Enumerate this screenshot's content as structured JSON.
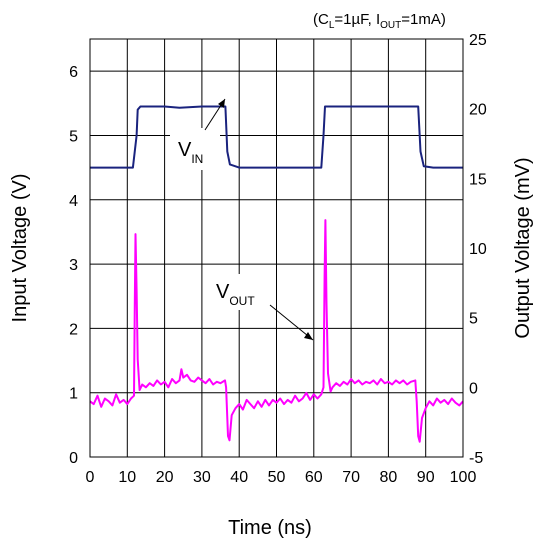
{
  "chart_data": {
    "type": "line",
    "condition": {
      "open": "(C",
      "cl_sub": "L",
      "cl_val": "=1µF, I",
      "iout_sub": "OUT",
      "iout_val": "=1mA)"
    },
    "xlabel": "Time (ns)",
    "ylabel_left": "Input Voltage (V)",
    "ylabel_right": "Output Voltage (mV)",
    "xlim": [
      0,
      100
    ],
    "ylim_left": [
      0,
      6.5
    ],
    "ylim_right": [
      -5,
      25
    ],
    "x_ticks": [
      "0",
      "10",
      "20",
      "30",
      "40",
      "50",
      "60",
      "70",
      "80",
      "90",
      "100"
    ],
    "y_left_ticks": [
      "0",
      "1",
      "2",
      "3",
      "4",
      "5",
      "6"
    ],
    "y_right_ticks": [
      "-5",
      "0",
      "5",
      "10",
      "15",
      "20",
      "25"
    ],
    "grid": true,
    "annotations": {
      "vin": {
        "main": "V",
        "sub": "IN"
      },
      "vout": {
        "main": "V",
        "sub": "OUT"
      }
    },
    "series": [
      {
        "name": "V_IN",
        "axis": "left",
        "color": "#1a237e",
        "points": [
          [
            0,
            4.5
          ],
          [
            5,
            4.5
          ],
          [
            10,
            4.5
          ],
          [
            11.5,
            4.5
          ],
          [
            12.5,
            5.0
          ],
          [
            12.8,
            5.4
          ],
          [
            13.5,
            5.45
          ],
          [
            20,
            5.45
          ],
          [
            24,
            5.43
          ],
          [
            30,
            5.45
          ],
          [
            35,
            5.45
          ],
          [
            36.3,
            5.45
          ],
          [
            36.8,
            4.75
          ],
          [
            37.5,
            4.55
          ],
          [
            40,
            4.5
          ],
          [
            50,
            4.5
          ],
          [
            62,
            4.5
          ],
          [
            62.6,
            5.0
          ],
          [
            63,
            5.45
          ],
          [
            70,
            5.45
          ],
          [
            80,
            5.45
          ],
          [
            88,
            5.45
          ],
          [
            88.6,
            4.75
          ],
          [
            89.5,
            4.52
          ],
          [
            92,
            4.5
          ],
          [
            100,
            4.5
          ]
        ]
      },
      {
        "name": "V_OUT",
        "axis": "right",
        "color": "#ff00ff",
        "points": [
          [
            0,
            -1.0
          ],
          [
            1,
            -1.2
          ],
          [
            2,
            -0.6
          ],
          [
            3,
            -1.4
          ],
          [
            4,
            -0.8
          ],
          [
            5,
            -1.0
          ],
          [
            6,
            -1.3
          ],
          [
            7,
            -0.5
          ],
          [
            8,
            -1.1
          ],
          [
            9,
            -0.9
          ],
          [
            10,
            -1.2
          ],
          [
            11,
            -0.8
          ],
          [
            11.8,
            -0.6
          ],
          [
            12.0,
            6.0
          ],
          [
            12.2,
            11.0
          ],
          [
            12.5,
            7.0
          ],
          [
            12.8,
            2.0
          ],
          [
            13.3,
            -0.2
          ],
          [
            14,
            0.2
          ],
          [
            15,
            0
          ],
          [
            16,
            0.3
          ],
          [
            17,
            0.1
          ],
          [
            18,
            0.5
          ],
          [
            19,
            0.2
          ],
          [
            20,
            0.4
          ],
          [
            21,
            0
          ],
          [
            22,
            0.6
          ],
          [
            23,
            0.3
          ],
          [
            24,
            0.5
          ],
          [
            24.5,
            1.3
          ],
          [
            25,
            0.7
          ],
          [
            26,
            0.9
          ],
          [
            27,
            0.5
          ],
          [
            28,
            0.4
          ],
          [
            29,
            0.7
          ],
          [
            30,
            0.5
          ],
          [
            31,
            0.3
          ],
          [
            32,
            0.6
          ],
          [
            33,
            0.2
          ],
          [
            34,
            0.4
          ],
          [
            35,
            0.3
          ],
          [
            36.2,
            0.5
          ],
          [
            36.5,
            0
          ],
          [
            37,
            -3.5
          ],
          [
            37.4,
            -3.8
          ],
          [
            38,
            -2.0
          ],
          [
            39,
            -1.5
          ],
          [
            40,
            -1.2
          ],
          [
            41,
            -1.6
          ],
          [
            42,
            -0.9
          ],
          [
            43,
            -1.2
          ],
          [
            44,
            -1.5
          ],
          [
            45,
            -1.0
          ],
          [
            46,
            -1.4
          ],
          [
            47,
            -0.9
          ],
          [
            48,
            -1.3
          ],
          [
            49,
            -0.9
          ],
          [
            50,
            -1.1
          ],
          [
            51,
            -0.8
          ],
          [
            52,
            -1.2
          ],
          [
            53,
            -0.9
          ],
          [
            54,
            -1.1
          ],
          [
            55,
            -0.6
          ],
          [
            56,
            -1.0
          ],
          [
            57,
            -0.8
          ],
          [
            58,
            -0.4
          ],
          [
            59,
            -0.9
          ],
          [
            60,
            -0.5
          ],
          [
            61,
            -0.8
          ],
          [
            62,
            -0.5
          ],
          [
            62.6,
            0
          ],
          [
            62.9,
            8.0
          ],
          [
            63.1,
            12.0
          ],
          [
            63.4,
            6.0
          ],
          [
            63.8,
            1.0
          ],
          [
            64.5,
            -0.3
          ],
          [
            65,
            0
          ],
          [
            66,
            0.3
          ],
          [
            67,
            0.1
          ],
          [
            68,
            0.4
          ],
          [
            69,
            0.2
          ],
          [
            70,
            0.6
          ],
          [
            71,
            0.3
          ],
          [
            72,
            0.5
          ],
          [
            73,
            0.2
          ],
          [
            74,
            0.4
          ],
          [
            75,
            0.3
          ],
          [
            76,
            0.5
          ],
          [
            77,
            0.2
          ],
          [
            78,
            0.6
          ],
          [
            79,
            0.3
          ],
          [
            80,
            0.4
          ],
          [
            81,
            0.2
          ],
          [
            82,
            0.5
          ],
          [
            83,
            0.3
          ],
          [
            84,
            0.5
          ],
          [
            85,
            0.2
          ],
          [
            86,
            0.4
          ],
          [
            87.2,
            0.5
          ],
          [
            87.6,
            -1.0
          ],
          [
            88.0,
            -3.5
          ],
          [
            88.4,
            -3.9
          ],
          [
            89,
            -2.2
          ],
          [
            90,
            -1.5
          ],
          [
            91,
            -1.0
          ],
          [
            92,
            -1.3
          ],
          [
            93,
            -0.8
          ],
          [
            94,
            -1.1
          ],
          [
            95,
            -0.9
          ],
          [
            96,
            -1.2
          ],
          [
            97,
            -0.8
          ],
          [
            98,
            -1.1
          ],
          [
            99,
            -1.3
          ],
          [
            100,
            -1.0
          ]
        ]
      }
    ]
  }
}
